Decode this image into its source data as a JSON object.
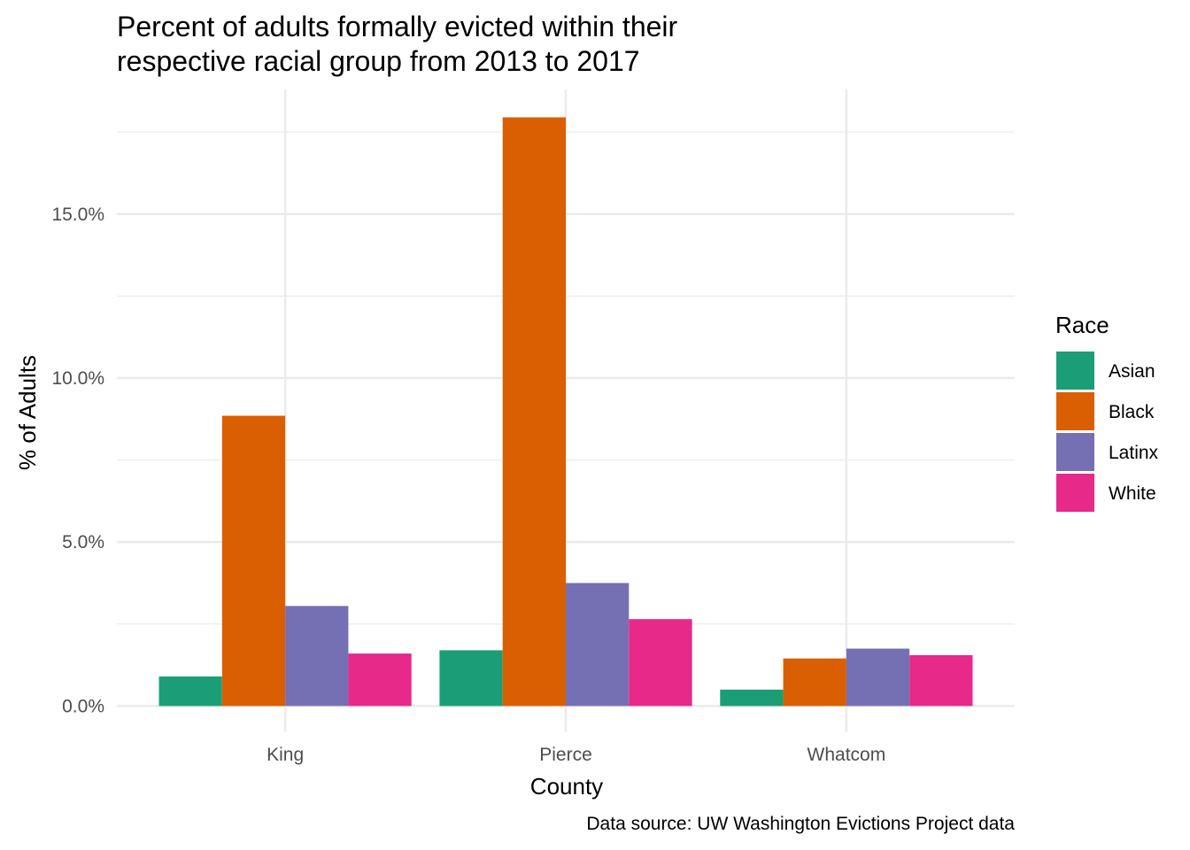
{
  "chart_data": {
    "type": "bar",
    "title_lines": [
      "Percent of adults formally evicted within their",
      "respective racial group from 2013 to 2017"
    ],
    "xlabel": "County",
    "ylabel": "% of Adults",
    "caption": "Data source: UW Washington Evictions Project data",
    "categories": [
      "King",
      "Pierce",
      "Whatcom"
    ],
    "legend_title": "Race",
    "legend_position": "right",
    "series": [
      {
        "name": "Asian",
        "color": "#1b9e77",
        "values": [
          0.9,
          1.7,
          0.5
        ]
      },
      {
        "name": "Black",
        "color": "#d95f02",
        "values": [
          8.85,
          17.95,
          1.45
        ]
      },
      {
        "name": "Latinx",
        "color": "#7570b3",
        "values": [
          3.05,
          3.75,
          1.75
        ]
      },
      {
        "name": "White",
        "color": "#e7298a",
        "values": [
          1.6,
          2.65,
          1.55
        ]
      }
    ],
    "ylim": [
      -0.8,
      18.8
    ],
    "yticks": [
      0,
      5,
      10,
      15
    ],
    "ytick_labels": [
      "0.0%",
      "5.0%",
      "10.0%",
      "15.0%"
    ],
    "grid": true
  }
}
